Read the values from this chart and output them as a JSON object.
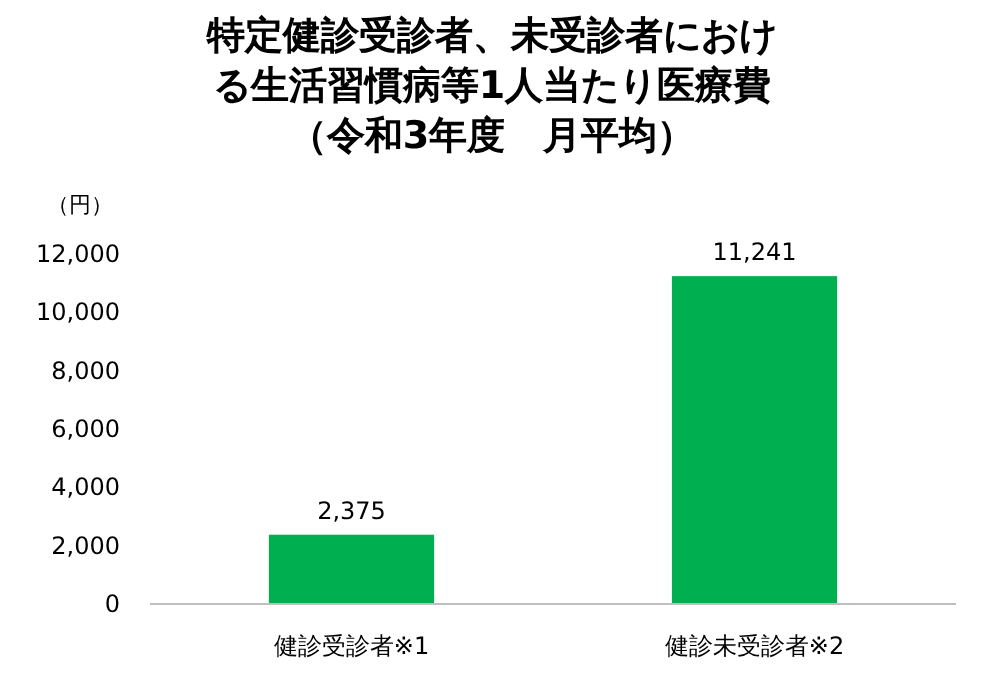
{
  "chart_data": {
    "type": "bar",
    "title": "特定健診受診者、未受診者における生活習慣病等1人当たり医療費",
    "subtitle": "（令和3年度　月平均）",
    "ylabel": "（円）",
    "categories": [
      "健診受診者※1",
      "健診未受診者※2"
    ],
    "values": [
      2375,
      11241
    ],
    "color": "#00b050",
    "value_labels": [
      "2,375",
      "11,241"
    ],
    "ylim": [
      0,
      12000
    ],
    "yticks": [
      {
        "value": 0,
        "label": "0"
      },
      {
        "value": 2000,
        "label": "2,000"
      },
      {
        "value": 4000,
        "label": "4,000"
      },
      {
        "value": 6000,
        "label": "6,000"
      },
      {
        "value": 8000,
        "label": "8,000"
      },
      {
        "value": 10000,
        "label": "10,000"
      },
      {
        "value": 12000,
        "label": "12,000"
      }
    ],
    "grid": false
  }
}
